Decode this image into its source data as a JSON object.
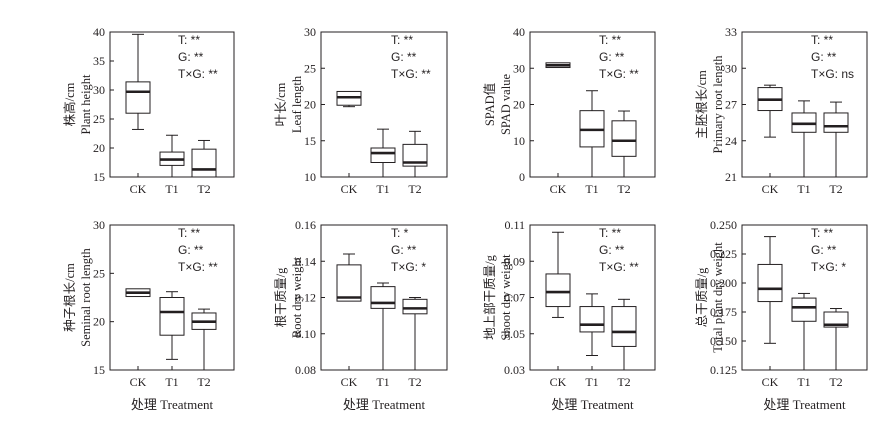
{
  "x_axis_title": "处理 Treatment",
  "chart_data": [
    {
      "type": "box",
      "ylabel_cn": "株高/cm",
      "ylabel_en": "Plant height",
      "ylim": [
        15,
        40
      ],
      "yticks": [
        15,
        20,
        25,
        30,
        35,
        40
      ],
      "categories": [
        "CK",
        "T1",
        "T2"
      ],
      "boxes": [
        {
          "min": 23.2,
          "q1": 26.0,
          "median": 29.7,
          "q3": 31.4,
          "max": 39.6
        },
        {
          "min": 15.0,
          "q1": 17.0,
          "median": 18.0,
          "q3": 19.3,
          "max": 22.2
        },
        {
          "min": 15.0,
          "q1": 15.0,
          "median": 16.3,
          "q3": 19.8,
          "max": 21.3
        }
      ],
      "stats": [
        "T: **",
        "G: **",
        "T×G: **"
      ]
    },
    {
      "type": "box",
      "ylabel_cn": "叶长/cm",
      "ylabel_en": "Leaf length",
      "ylim": [
        10,
        30
      ],
      "yticks": [
        10,
        15,
        20,
        25,
        30
      ],
      "categories": [
        "CK",
        "T1",
        "T2"
      ],
      "boxes": [
        {
          "min": 19.7,
          "q1": 19.9,
          "median": 21.0,
          "q3": 21.8,
          "max": 21.8
        },
        {
          "min": 10.0,
          "q1": 12.0,
          "median": 13.3,
          "q3": 14.0,
          "max": 16.6
        },
        {
          "min": 10.0,
          "q1": 11.5,
          "median": 12.0,
          "q3": 14.5,
          "max": 16.3
        }
      ],
      "stats": [
        "T: **",
        "G: **",
        "T×G: **"
      ]
    },
    {
      "type": "box",
      "ylabel_cn": "SPAD值",
      "ylabel_en": "SPAD value",
      "ylim": [
        0,
        40
      ],
      "yticks": [
        0,
        10,
        20,
        30,
        40
      ],
      "categories": [
        "CK",
        "T1",
        "T2"
      ],
      "boxes": [
        {
          "min": 30.2,
          "q1": 30.2,
          "median": 30.8,
          "q3": 31.5,
          "max": 31.5
        },
        {
          "min": 0.0,
          "q1": 8.3,
          "median": 13.0,
          "q3": 18.3,
          "max": 23.8
        },
        {
          "min": 0.0,
          "q1": 5.7,
          "median": 10.0,
          "q3": 15.5,
          "max": 18.2
        }
      ],
      "stats": [
        "T: **",
        "G: **",
        "T×G: **"
      ]
    },
    {
      "type": "box",
      "ylabel_cn": "主胚根长/cm",
      "ylabel_en": "Primary root length",
      "ylim": [
        21,
        33
      ],
      "yticks": [
        21,
        24,
        27,
        30,
        33
      ],
      "categories": [
        "CK",
        "T1",
        "T2"
      ],
      "boxes": [
        {
          "min": 24.3,
          "q1": 26.5,
          "median": 27.4,
          "q3": 28.4,
          "max": 28.6
        },
        {
          "min": 21.0,
          "q1": 24.7,
          "median": 25.4,
          "q3": 26.3,
          "max": 27.3
        },
        {
          "min": 21.0,
          "q1": 24.7,
          "median": 25.2,
          "q3": 26.3,
          "max": 27.2
        }
      ],
      "stats": [
        "T: **",
        "G: **",
        "T×G: ns"
      ]
    },
    {
      "type": "box",
      "ylabel_cn": "种子根长/cm",
      "ylabel_en": "Seminal root length",
      "ylim": [
        15,
        30
      ],
      "yticks": [
        15,
        20,
        25,
        30
      ],
      "categories": [
        "CK",
        "T1",
        "T2"
      ],
      "boxes": [
        {
          "min": 22.6,
          "q1": 22.6,
          "median": 23.0,
          "q3": 23.4,
          "max": 23.4
        },
        {
          "min": 16.1,
          "q1": 18.6,
          "median": 21.0,
          "q3": 22.5,
          "max": 23.1
        },
        {
          "min": 15.0,
          "q1": 19.2,
          "median": 20.0,
          "q3": 20.9,
          "max": 21.3
        }
      ],
      "stats": [
        "T: **",
        "G: **",
        "T×G: **"
      ]
    },
    {
      "type": "box",
      "ylabel_cn": "根干质量/g",
      "ylabel_en": "Root dry weight",
      "ylim": [
        0.08,
        0.16
      ],
      "yticks": [
        0.08,
        0.1,
        0.12,
        0.14,
        0.16
      ],
      "categories": [
        "CK",
        "T1",
        "T2"
      ],
      "boxes": [
        {
          "min": 0.118,
          "q1": 0.118,
          "median": 0.12,
          "q3": 0.138,
          "max": 0.144
        },
        {
          "min": 0.08,
          "q1": 0.114,
          "median": 0.117,
          "q3": 0.126,
          "max": 0.128
        },
        {
          "min": 0.08,
          "q1": 0.111,
          "median": 0.114,
          "q3": 0.119,
          "max": 0.12
        }
      ],
      "stats": [
        "T: *",
        "G: **",
        "T×G: *"
      ]
    },
    {
      "type": "box",
      "ylabel_cn": "地上部干质量/g",
      "ylabel_en": "Shoot dry weight",
      "ylim": [
        0.03,
        0.11
      ],
      "yticks": [
        0.03,
        0.05,
        0.07,
        0.09,
        0.11
      ],
      "categories": [
        "CK",
        "T1",
        "T2"
      ],
      "boxes": [
        {
          "min": 0.059,
          "q1": 0.065,
          "median": 0.073,
          "q3": 0.083,
          "max": 0.106
        },
        {
          "min": 0.038,
          "q1": 0.051,
          "median": 0.055,
          "q3": 0.065,
          "max": 0.072
        },
        {
          "min": 0.03,
          "q1": 0.043,
          "median": 0.051,
          "q3": 0.065,
          "max": 0.069
        }
      ],
      "stats": [
        "T: **",
        "G: **",
        "T×G: **"
      ]
    },
    {
      "type": "box",
      "ylabel_cn": "总干质量/g",
      "ylabel_en": "Total plant dry weight",
      "ylim": [
        0.125,
        0.25
      ],
      "yticks": [
        0.125,
        0.15,
        0.175,
        0.2,
        0.225,
        0.25
      ],
      "ytick_labels": [
        "0.125",
        "0.150",
        "0.175",
        "0.200",
        "0.225",
        "0.250"
      ],
      "categories": [
        "CK",
        "T1",
        "T2"
      ],
      "boxes": [
        {
          "min": 0.148,
          "q1": 0.184,
          "median": 0.195,
          "q3": 0.216,
          "max": 0.24
        },
        {
          "min": 0.125,
          "q1": 0.167,
          "median": 0.179,
          "q3": 0.187,
          "max": 0.191
        },
        {
          "min": 0.125,
          "q1": 0.162,
          "median": 0.164,
          "q3": 0.175,
          "max": 0.178
        }
      ],
      "stats": [
        "T: **",
        "G: **",
        "T×G: *"
      ]
    }
  ]
}
